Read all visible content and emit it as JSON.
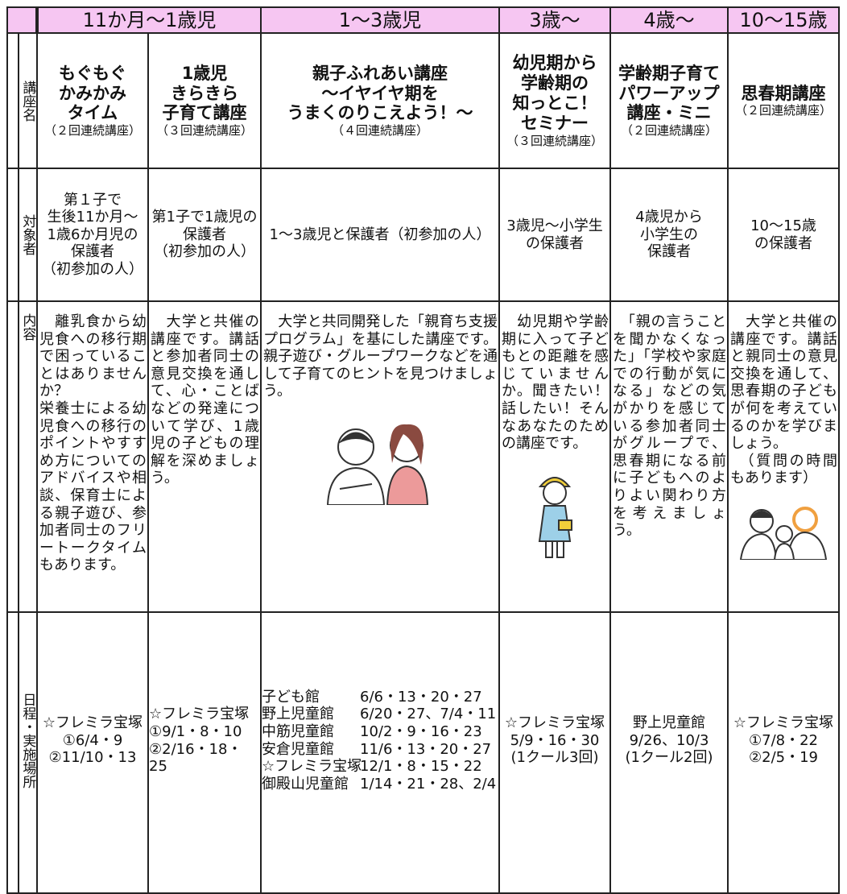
{
  "header": {
    "groups": [
      "11か月〜1歳児",
      "1〜3歳児",
      "3歳〜",
      "4歳〜",
      "10〜15歳"
    ]
  },
  "rows": [
    {
      "label": "講座名",
      "cells": [
        {
          "title": "もぐもぐ\nかみかみ\nタイム",
          "note": "（２回連続講座）"
        },
        {
          "title": "1歳児\nきらきら\n子育て講座",
          "note": "（３回連続講座）"
        },
        {
          "title": "親子ふれあい講座\n〜イヤイヤ期を\nうまくのりこえよう！〜",
          "note": "（４回連続講座）"
        },
        {
          "title": "幼児期から\n学齢期の\n知っとこ！\nセミナー",
          "note": "（３回連続講座）"
        },
        {
          "title": "学齢期子育て\nパワーアップ\n講座・ミニ",
          "note": "（２回連続講座）"
        },
        {
          "title": "思春期講座",
          "note": "（２回連続講座）"
        }
      ]
    },
    {
      "label": "対象者",
      "cells": [
        {
          "text": "第１子で\n生後11か月〜\n1歳6か月児の\n保護者\n（初参加の人）"
        },
        {
          "text": "第1子で1歳児の\n保護者\n（初参加の人）"
        },
        {
          "text": "1〜3歳児と保護者（初参加の人）"
        },
        {
          "text": "3歳児〜小学生\nの保護者"
        },
        {
          "text": "4歳児から\n小学生の\n保護者"
        },
        {
          "text": "10〜15歳\nの保護者"
        }
      ]
    },
    {
      "label": "内容",
      "cells": [
        {
          "text": "　離乳食から幼児食への移行期で困っていることはありませんか？\n栄養士による幼児食への移行のポイントやすすめ方についてのアドバイスや相談、保育士による親子遊び、参加者同士のフリートークタイムもあります。"
        },
        {
          "text": "　大学と共催の講座です。講話と参加者同士の意見交換を通して、心・ことばなどの発達について学び、1歳児の子どもの理解を深めましょう。"
        },
        {
          "text": "　大学と共同開発した「親育ち支援プログラム」を基にした講座です。親子遊び・グループワークなどを通して子育てのヒントを見つけましょう。"
        },
        {
          "text": "　幼児期や学齢期に入って子どもとの距離を感じていませんか。聞きたい！話したい！そんなあなたのための講座です。"
        },
        {
          "text": "　「親の言うことを聞かなくなった」「学校や家庭での行動が気になる」などの気がかりを感じている参加者同士がグループで、思春期になる前に子どもへのよりよい関わり方を考えましょう。"
        },
        {
          "text": "　大学と共催の講座です。講話と親同士の意見交換を通して、思春期の子どもが何を考えているのかを学びましょう。\n　（質問の時間もあります）"
        }
      ]
    },
    {
      "label": "日程・実施場所",
      "cells": [
        {
          "text": "☆フレミラ宝塚\n①6/4・9\n②11/10・13"
        },
        {
          "text": "☆フレミラ宝塚\n①9/1・8・10\n②2/16・18・25"
        },
        {
          "entries": [
            {
              "place": "子ども館",
              "dates": "6/6・13・20・27"
            },
            {
              "place": "野上児童館",
              "dates": "6/20・27、7/4・11"
            },
            {
              "place": "中筋児童館",
              "dates": "10/2・9・16・23"
            },
            {
              "place": "安倉児童館",
              "dates": "11/6・13・20・27"
            },
            {
              "place": "☆フレミラ宝塚",
              "dates": "12/1・8・15・22"
            },
            {
              "place": "御殿山児童館",
              "dates": "1/14・21・28、2/4"
            }
          ]
        },
        {
          "text": "☆フレミラ宝塚\n5/9・16・30\n(1クール3回)"
        },
        {
          "text": "野上児童館\n9/26、10/3\n(1クール2回)"
        },
        {
          "text": "☆フレミラ宝塚\n①7/8・22\n②2/5・19"
        }
      ]
    }
  ]
}
